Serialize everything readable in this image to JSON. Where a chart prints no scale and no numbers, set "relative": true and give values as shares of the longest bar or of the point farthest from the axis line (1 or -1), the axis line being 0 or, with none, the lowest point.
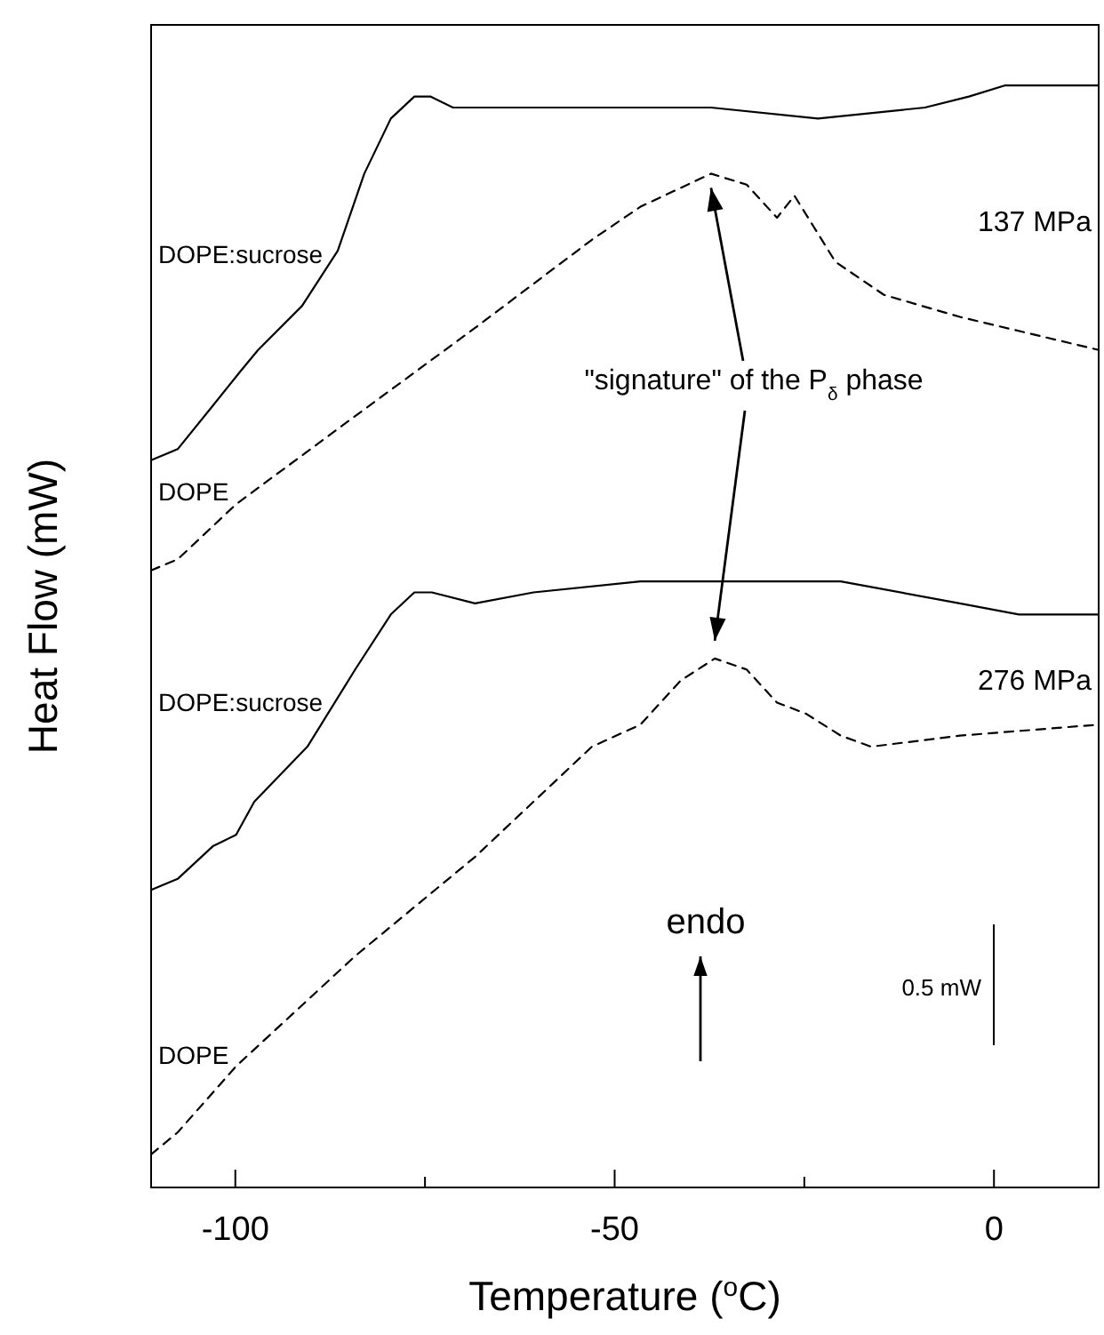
{
  "chart_data": {
    "type": "line",
    "relative": true,
    "xlabel": "Temperature ($^{o}$C)",
    "ylabel": "Heat Flow (mW)",
    "xlim": [
      -111.1,
      13.8
    ],
    "xticks": [
      -100,
      {
        "value": -75,
        "label": null
      },
      -50,
      {
        "value": -25,
        "label": null
      },
      0
    ],
    "tick_labels": "x",
    "series": [
      {
        "name": "DOPE:sucrose",
        "color": "#000000",
        "line_style": "solid",
        "x": [
          -111.1,
          -107.6,
          -102.9,
          -99.4,
          -97.0,
          -91.2,
          -86.5,
          -83.0,
          -79.5,
          -76.4,
          -74.3,
          -71.3,
          -67.7,
          -60.7,
          -51.3,
          -37.3,
          -23.2,
          -9.1,
          -3.3,
          1.4,
          6.1,
          9.6,
          13.8
        ],
        "values": [
          0.66,
          0.67,
          0.71,
          0.74,
          0.76,
          0.8,
          0.85,
          0.92,
          0.97,
          0.99,
          0.99,
          0.98,
          0.98,
          0.98,
          0.98,
          0.98,
          0.97,
          0.98,
          0.99,
          1.0,
          1.0,
          1.0,
          1.0
        ]
      },
      {
        "name": "DOPE",
        "color": "#000000",
        "line_style": "dashed",
        "x": [
          -111.1,
          -107.6,
          -99.9,
          -84.2,
          -68.4,
          -53.0,
          -46.6,
          -37.3,
          -32.6,
          -28.6,
          -26.3,
          -20.9,
          -14.5,
          -4.5,
          13.8
        ],
        "values": [
          0.56,
          0.57,
          0.62,
          0.7,
          0.78,
          0.86,
          0.89,
          0.92,
          0.91,
          0.88,
          0.9,
          0.84,
          0.81,
          0.79,
          0.76
        ]
      },
      {
        "name": "DOPE:sucrose",
        "color": "#000000",
        "line_style": "solid",
        "x": [
          -111.1,
          -107.6,
          -102.9,
          -99.9,
          -97.5,
          -90.5,
          -84.2,
          -79.5,
          -76.4,
          -74.1,
          -68.4,
          -60.7,
          -46.6,
          -35.6,
          -20.2,
          -4.5,
          3.3,
          12.7,
          13.8
        ],
        "values": [
          0.27,
          0.28,
          0.31,
          0.32,
          0.35,
          0.4,
          0.47,
          0.52,
          0.54,
          0.54,
          0.53,
          0.54,
          0.55,
          0.55,
          0.55,
          0.53,
          0.52,
          0.52,
          0.52
        ]
      },
      {
        "name": "DOPE",
        "color": "#000000",
        "line_style": "dashed",
        "x": [
          -111.1,
          -107.6,
          -99.9,
          -84.2,
          -68.4,
          -53.0,
          -46.6,
          -41.3,
          -36.8,
          -32.6,
          -28.6,
          -24.8,
          -20.2,
          -16.2,
          -4.5,
          13.8
        ],
        "values": [
          0.03,
          0.05,
          0.11,
          0.21,
          0.3,
          0.4,
          0.42,
          0.46,
          0.48,
          0.47,
          0.44,
          0.43,
          0.41,
          0.4,
          0.41,
          0.42
        ]
      }
    ],
    "annotations": [
      "137 MPa",
      "\"signature\" of the P$_{δ}$ phase",
      "276 MPa",
      "endo",
      "0.5 mW"
    ]
  }
}
